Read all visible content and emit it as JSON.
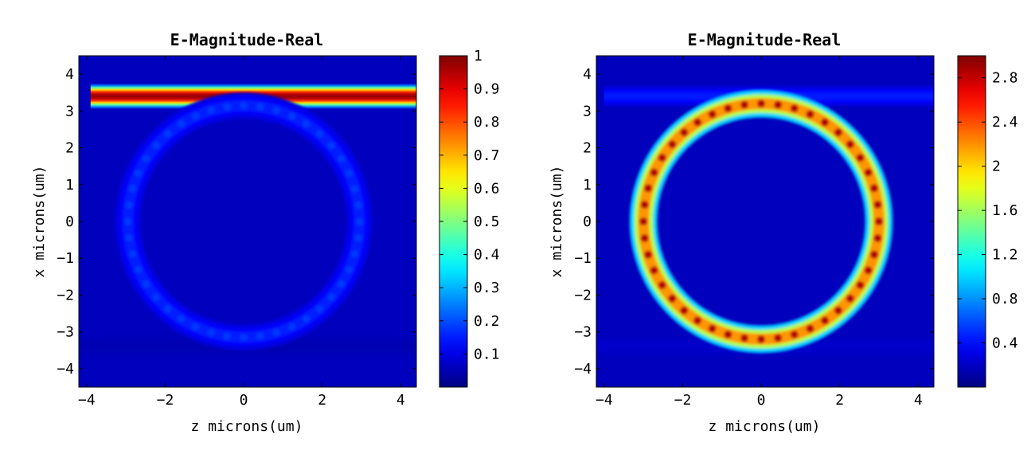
{
  "chart_data": [
    {
      "type": "heatmap",
      "title": "E-Magnitude-Real",
      "xlabel": "z microns(um)",
      "ylabel": "x microns(um)",
      "xlim": [
        -4.2,
        4.4
      ],
      "ylim": [
        -4.5,
        4.5
      ],
      "x_ticks": [
        -4,
        -2,
        0,
        2,
        4
      ],
      "y_ticks": [
        4,
        3,
        2,
        1,
        0,
        -1,
        -2,
        -3,
        -4
      ],
      "colorbar": {
        "min": 0,
        "max": 1,
        "ticks": [
          0.1,
          0.2,
          0.3,
          0.4,
          0.5,
          0.6,
          0.7,
          0.8,
          0.9,
          1
        ],
        "tick_labels": [
          "0.1",
          "0.2",
          "0.3",
          "0.4",
          "0.5",
          "0.6",
          "0.7",
          "0.8",
          "0.9",
          "1"
        ]
      },
      "colormap": "jet",
      "structures": [
        {
          "kind": "straight_waveguide",
          "x_center": 3.4,
          "width": 0.5,
          "z_start": -3.9,
          "z_end": 4.4,
          "value": 0.98
        },
        {
          "kind": "straight_waveguide",
          "x_center": -3.4,
          "width": 0.5,
          "z_start": -4.2,
          "z_end": 4.4,
          "value": 0.05
        },
        {
          "kind": "ring",
          "center": [
            0,
            0
          ],
          "radius": 2.95,
          "width": 0.3,
          "value": 0.18,
          "standing_wave_periods": 44
        }
      ]
    },
    {
      "type": "heatmap",
      "title": "E-Magnitude-Real",
      "xlabel": "z microns(um)",
      "ylabel": "x microns(um)",
      "xlim": [
        -4.2,
        4.4
      ],
      "ylim": [
        -4.5,
        4.5
      ],
      "x_ticks": [
        -4,
        -2,
        0,
        2,
        4
      ],
      "y_ticks": [
        4,
        3,
        2,
        1,
        0,
        -1,
        -2,
        -3,
        -4
      ],
      "colorbar": {
        "min": 0,
        "max": 3,
        "ticks": [
          0.4,
          0.8,
          1.2,
          1.6,
          2,
          2.4,
          2.8
        ],
        "tick_labels": [
          "0.4",
          "0.8",
          "1.2",
          "1.6",
          "2",
          "2.4",
          "2.8"
        ]
      },
      "colormap": "jet",
      "structures": [
        {
          "kind": "straight_waveguide",
          "x_center": 3.4,
          "width": 0.45,
          "z_start": -4.0,
          "z_end": 4.4,
          "value": 0.45
        },
        {
          "kind": "straight_waveguide",
          "x_center": -3.4,
          "width": 0.45,
          "z_start": -4.2,
          "z_end": 4.4,
          "value": 0.22
        },
        {
          "kind": "ring",
          "center": [
            0,
            0
          ],
          "radius": 3.0,
          "width": 0.32,
          "value": 2.85,
          "standing_wave_periods": 44
        }
      ]
    }
  ]
}
